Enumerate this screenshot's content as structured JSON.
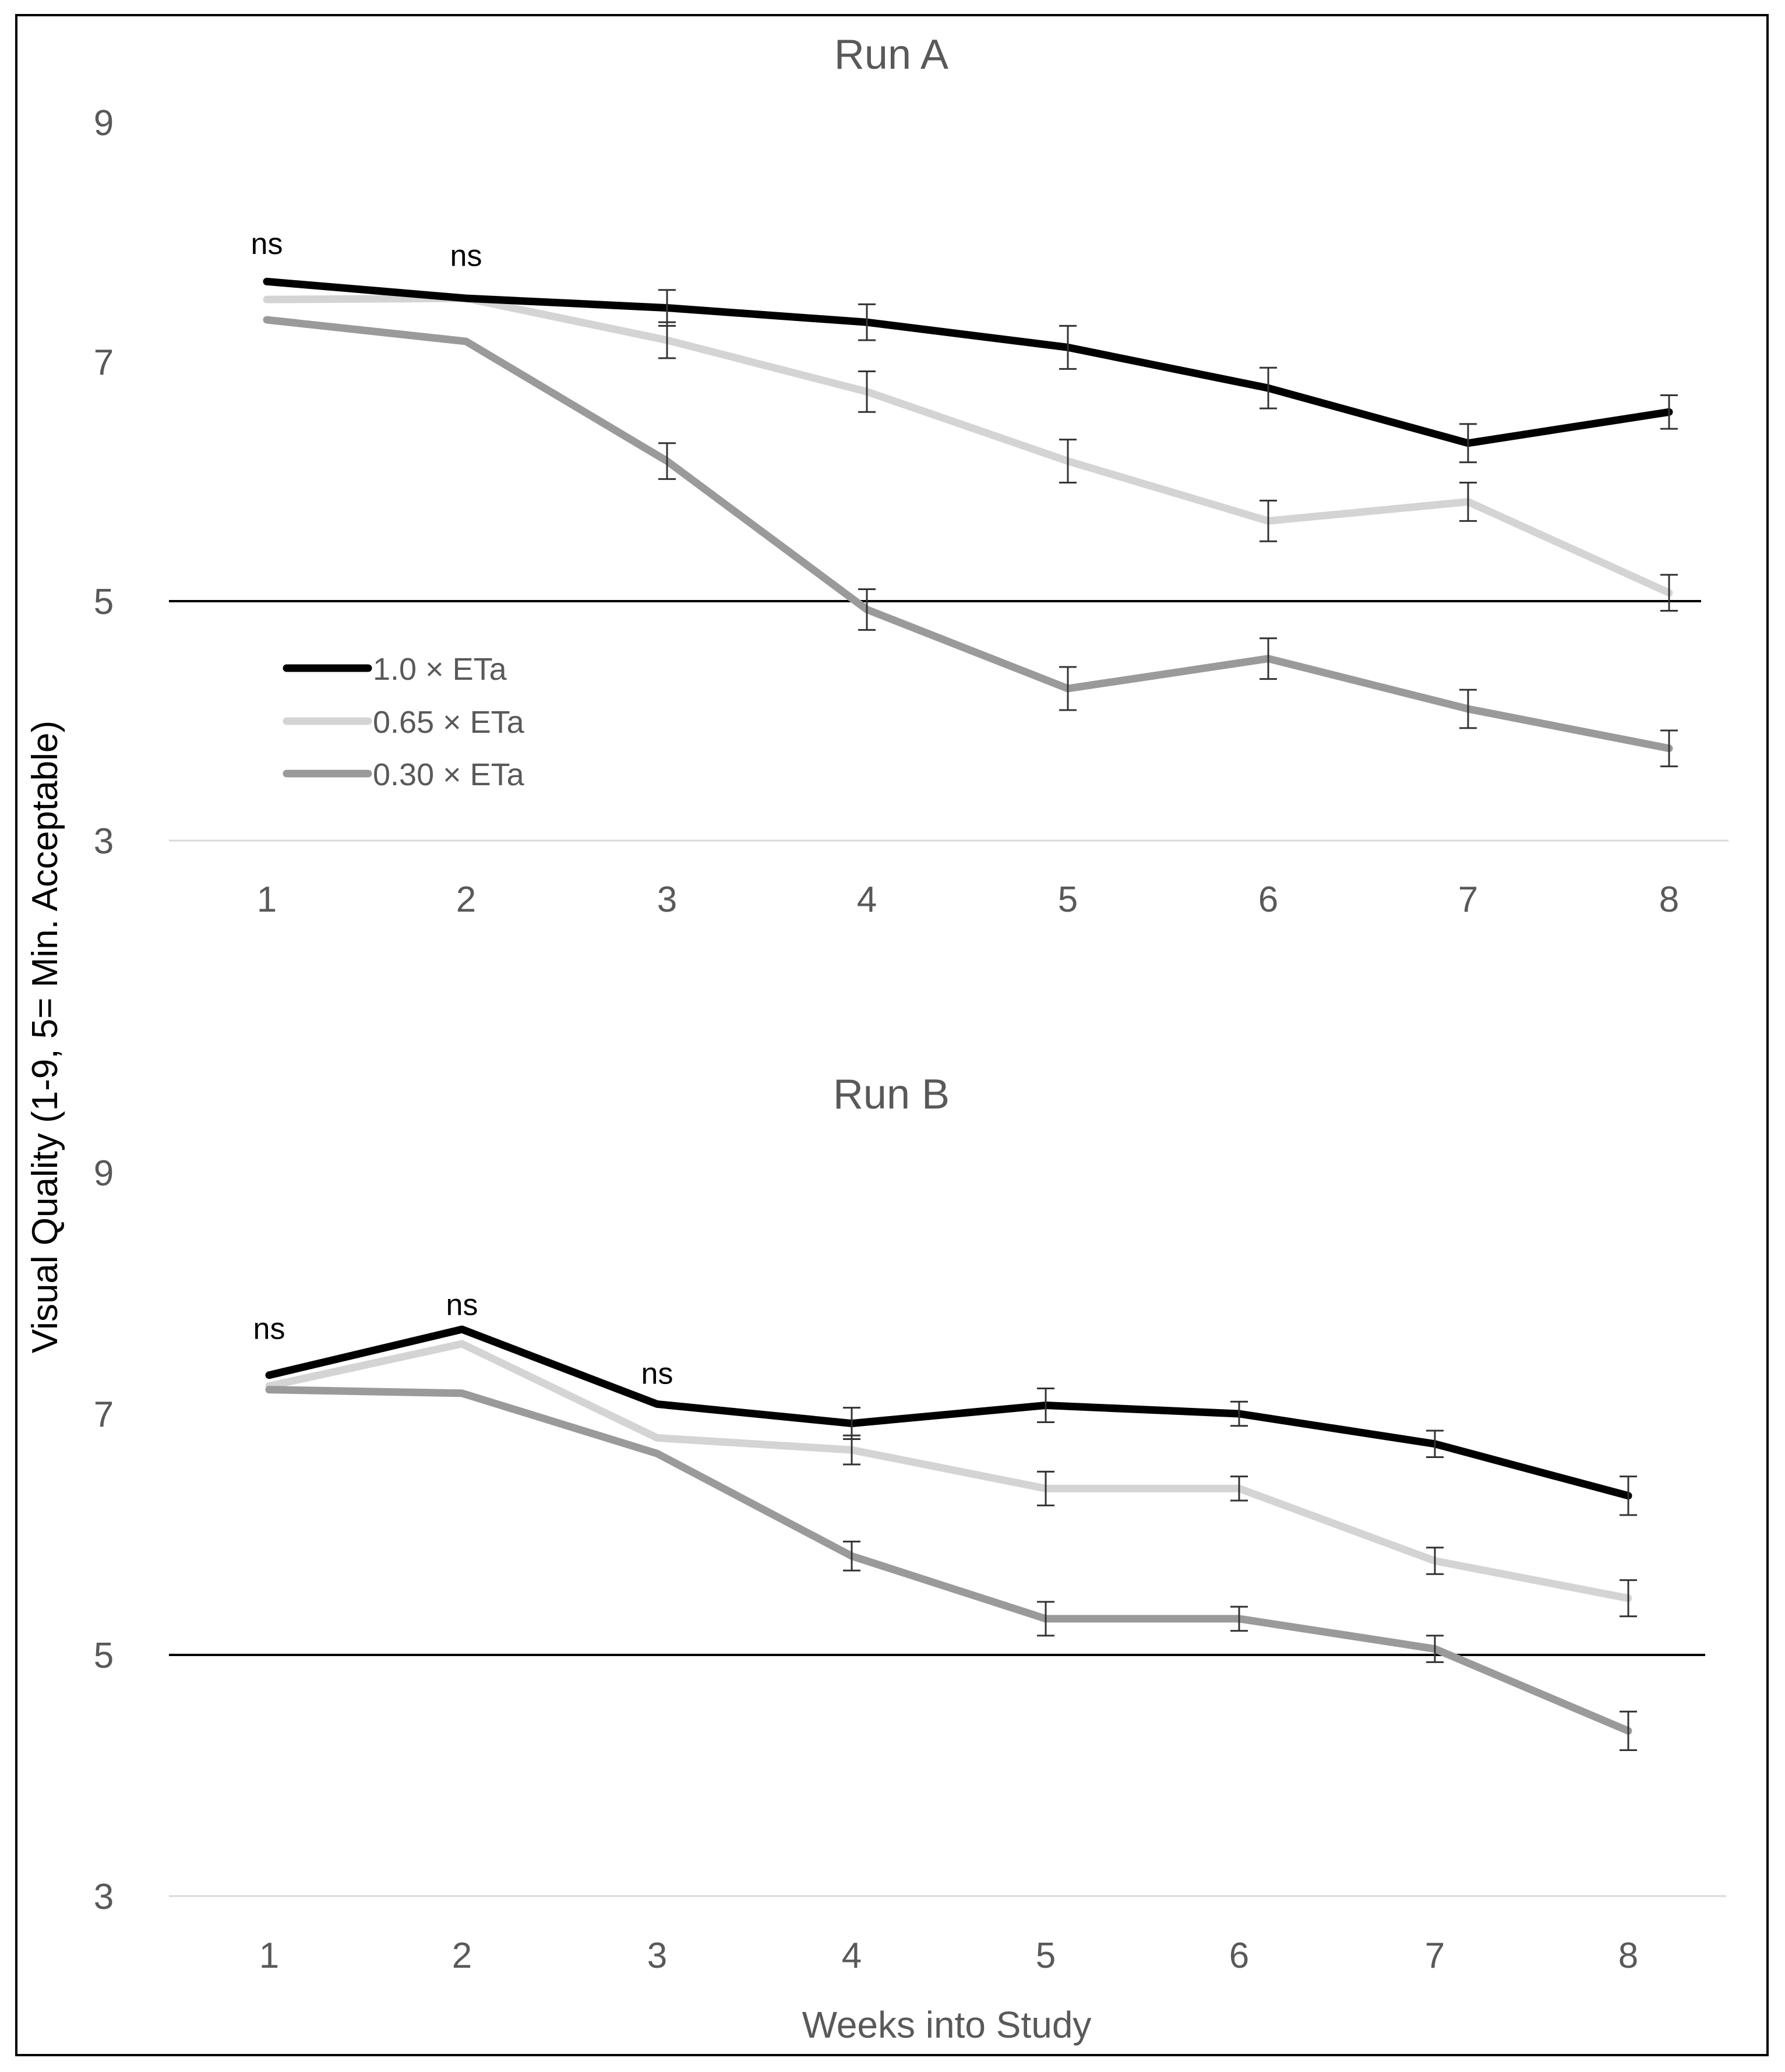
{
  "colors": {
    "eta_1_0": "#000000",
    "eta_0_65": "#d4d4d4",
    "eta_0_30": "#9a9a9a",
    "reference_line": "#000000",
    "baseline": "#d9d9d9",
    "text": "#595959",
    "frame": "#000000"
  },
  "figure": {
    "ylabel": "Visual Quality (1-9, 5= Min. Acceptable)",
    "xlabel": "Weeks into Study",
    "legend": [
      "1.0 × ETa",
      "0.65 × ETa",
      "0.30 × ETa"
    ]
  },
  "chart_data": [
    {
      "type": "line",
      "title": "Run A",
      "xlabel": "",
      "ylabel": "Visual Quality (1-9, 5= Min. Acceptable)",
      "categories": [
        "1",
        "2",
        "3",
        "4",
        "5",
        "6",
        "7",
        "8"
      ],
      "yticks": [
        "3",
        "5",
        "7",
        "9"
      ],
      "ylim": [
        3,
        9
      ],
      "reference_line": 5,
      "legend_position": "left, below the reference line",
      "series": [
        {
          "name": "1.0 × ETa",
          "color": "#000000",
          "values": [
            7.67,
            7.53,
            7.45,
            7.33,
            7.12,
            6.78,
            6.32,
            6.58
          ],
          "errors": [
            0,
            0,
            0.15,
            0.15,
            0.18,
            0.17,
            0.16,
            0.14
          ]
        },
        {
          "name": "0.65 × ETa",
          "color": "#d4d4d4",
          "values": [
            7.52,
            7.53,
            7.18,
            6.75,
            6.17,
            5.67,
            5.83,
            5.07
          ],
          "errors": [
            0,
            0,
            0.15,
            0.17,
            0.18,
            0.17,
            0.16,
            0.15
          ]
        },
        {
          "name": "0.30 × ETa",
          "color": "#9a9a9a",
          "values": [
            7.35,
            7.17,
            6.17,
            4.93,
            4.27,
            4.52,
            4.1,
            3.77
          ],
          "errors": [
            0,
            0,
            0.15,
            0.17,
            0.18,
            0.17,
            0.16,
            0.15
          ]
        }
      ],
      "annotations": [
        {
          "text": "ns",
          "x": "1",
          "y": 7.9
        },
        {
          "text": "ns",
          "x": "2",
          "y": 7.8
        }
      ]
    },
    {
      "type": "line",
      "title": "Run B",
      "xlabel": "Weeks into Study",
      "ylabel": "Visual Quality (1-9, 5= Min. Acceptable)",
      "categories": [
        "1",
        "2",
        "3",
        "4",
        "5",
        "6",
        "7",
        "8"
      ],
      "yticks": [
        "3",
        "5",
        "7",
        "9"
      ],
      "ylim": [
        3,
        9
      ],
      "reference_line": 5,
      "series": [
        {
          "name": "1.0 × ETa",
          "color": "#000000",
          "values": [
            7.32,
            7.7,
            7.08,
            6.92,
            7.07,
            7.0,
            6.75,
            6.32
          ],
          "errors": [
            0,
            0,
            0,
            0.13,
            0.14,
            0.1,
            0.11,
            0.16
          ]
        },
        {
          "name": "0.65 × ETa",
          "color": "#d4d4d4",
          "values": [
            7.23,
            7.58,
            6.8,
            6.7,
            6.38,
            6.38,
            5.78,
            5.47
          ],
          "errors": [
            0,
            0,
            0,
            0.12,
            0.14,
            0.1,
            0.11,
            0.15
          ]
        },
        {
          "name": "0.30 × ETa",
          "color": "#9a9a9a",
          "values": [
            7.2,
            7.17,
            6.67,
            5.82,
            5.3,
            5.3,
            5.05,
            4.37
          ],
          "errors": [
            0,
            0,
            0,
            0.12,
            0.14,
            0.1,
            0.11,
            0.16
          ]
        }
      ],
      "annotations": [
        {
          "text": "ns",
          "x": "1",
          "y": 7.62
        },
        {
          "text": "ns",
          "x": "2",
          "y": 7.82
        },
        {
          "text": "ns",
          "x": "3",
          "y": 7.25
        }
      ]
    }
  ]
}
